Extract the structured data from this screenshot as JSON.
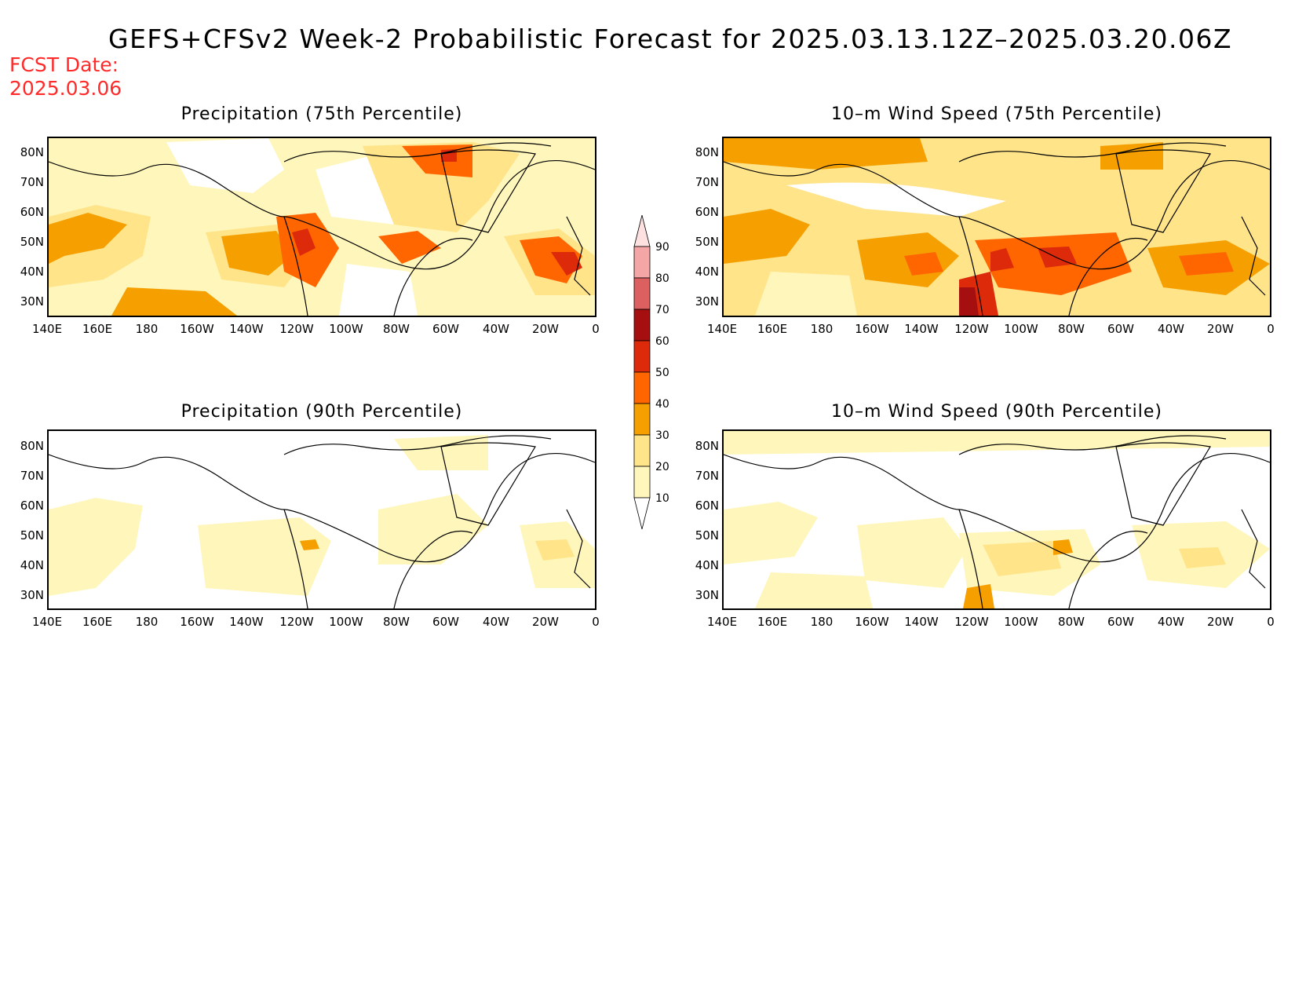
{
  "title": "GEFS+CFSv2 Week-2 Probabilistic Forecast for 2025.03.13.12Z–2025.03.20.06Z",
  "fcst_label": "FCST Date:",
  "fcst_date": "2025.03.06",
  "panels": [
    {
      "title": "Precipitation (75th Percentile)"
    },
    {
      "title": "10–m Wind Speed (75th Percentile)"
    },
    {
      "title": "Precipitation (90th Percentile)"
    },
    {
      "title": "10–m Wind Speed (90th Percentile)"
    }
  ],
  "lat_labels": [
    "80N",
    "70N",
    "60N",
    "50N",
    "40N",
    "30N"
  ],
  "lon_labels": [
    "140E",
    "160E",
    "180",
    "160W",
    "140W",
    "120W",
    "100W",
    "80W",
    "60W",
    "40W",
    "20W",
    "0"
  ],
  "colorbar": {
    "levels": [
      "90",
      "80",
      "70",
      "60",
      "50",
      "40",
      "30",
      "20",
      "10"
    ],
    "colors": [
      "#fde0e0",
      "#f4a6a6",
      "#dc6060",
      "#a50f0f",
      "#dc2a0a",
      "#ff6600",
      "#f5a000",
      "#ffe48a",
      "#fff6bb"
    ]
  },
  "colors": {
    "shade_10": "#fff6bb",
    "shade_20": "#ffe48a",
    "shade_30": "#f5a000",
    "shade_40": "#ff6600",
    "shade_50": "#dc2a0a",
    "shade_60": "#a50f0f",
    "title_red": "#ff2a2a"
  }
}
